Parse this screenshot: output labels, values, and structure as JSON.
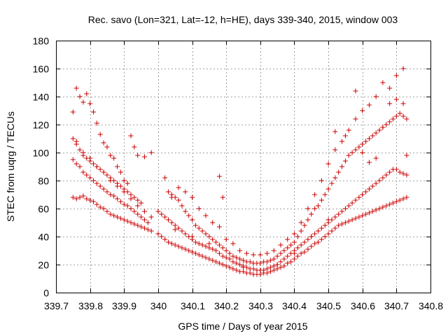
{
  "chart_data": {
    "type": "scatter",
    "title": "Rec. savo (Lon=321, Lat=-12, h=HE), days 339-340, 2015, window 003",
    "xlabel": "GPS time / Days of year 2015",
    "ylabel": "STEC from uqrg / TECUs",
    "xlim": [
      339.7,
      340.8
    ],
    "ylim": [
      0,
      180
    ],
    "xticks": [
      "339.7",
      "339.8",
      "339.9",
      "340",
      "340.1",
      "340.2",
      "340.3",
      "340.4",
      "340.5",
      "340.6",
      "340.7",
      "340.8"
    ],
    "yticks": [
      "0",
      "20",
      "40",
      "60",
      "80",
      "100",
      "120",
      "140",
      "160",
      "180"
    ],
    "grid": true,
    "marker": "plus",
    "color": "#cc0000",
    "series": [
      {
        "x": [
          339.75,
          339.76,
          339.77,
          339.78,
          339.79,
          339.8,
          339.81,
          339.82,
          339.83,
          339.84,
          339.85,
          339.86,
          339.87,
          339.88,
          339.89,
          339.9,
          339.91,
          339.92,
          339.93,
          339.94,
          339.95,
          339.96,
          339.97,
          339.98,
          340.0,
          340.01,
          340.02,
          340.03,
          340.04,
          340.05,
          340.06,
          340.07,
          340.08,
          340.09,
          340.1,
          340.11,
          340.12,
          340.13,
          340.14,
          340.15,
          340.16,
          340.17,
          340.18,
          340.19,
          340.2,
          340.21,
          340.22,
          340.23,
          340.24,
          340.25,
          340.26,
          340.27,
          340.28,
          340.29,
          340.3,
          340.31,
          340.32,
          340.33,
          340.34,
          340.35,
          340.36,
          340.37,
          340.38,
          340.39,
          340.4,
          340.41,
          340.42,
          340.43,
          340.44,
          340.45,
          340.46,
          340.47,
          340.48,
          340.49,
          340.5,
          340.51,
          340.52,
          340.53,
          340.54,
          340.55,
          340.56,
          340.57,
          340.58,
          340.59,
          340.6,
          340.61,
          340.62,
          340.63,
          340.64,
          340.65,
          340.66,
          340.67,
          340.68,
          340.69,
          340.7,
          340.71,
          340.72,
          340.73
        ],
        "y": [
          68,
          67,
          68,
          69,
          67,
          66,
          65,
          63,
          61,
          60,
          58,
          56,
          55,
          54,
          53,
          52,
          51,
          50,
          49,
          48,
          47,
          46,
          45,
          44,
          42,
          40,
          38,
          36,
          35,
          34,
          33,
          32,
          31,
          30,
          29,
          28,
          27,
          26,
          25,
          24,
          23,
          22,
          21,
          20,
          19,
          18,
          17,
          16,
          15,
          15,
          14,
          14,
          13,
          13,
          13,
          14,
          14,
          15,
          16,
          17,
          18,
          19,
          21,
          22,
          24,
          26,
          28,
          29,
          31,
          33,
          35,
          36,
          38,
          40,
          42,
          44,
          46,
          48,
          49,
          50,
          51,
          52,
          53,
          54,
          55,
          56,
          57,
          58,
          59,
          60,
          61,
          62,
          63,
          64,
          65,
          66,
          67,
          68
        ]
      },
      {
        "x": [
          339.75,
          339.76,
          339.77,
          339.78,
          339.79,
          339.8,
          339.81,
          339.82,
          339.83,
          339.84,
          339.85,
          339.86,
          339.87,
          339.88,
          339.89,
          339.9,
          339.91,
          339.92,
          339.93,
          339.94,
          339.95,
          339.96,
          339.97,
          340.0,
          340.01,
          340.02,
          340.03,
          340.04,
          340.05,
          340.06,
          340.07,
          340.08,
          340.09,
          340.1,
          340.11,
          340.12,
          340.13,
          340.14,
          340.15,
          340.16,
          340.17,
          340.18,
          340.19,
          340.2,
          340.21,
          340.22,
          340.23,
          340.24,
          340.25,
          340.26,
          340.27,
          340.28,
          340.29,
          340.3,
          340.31,
          340.32,
          340.33,
          340.34,
          340.35,
          340.36,
          340.37,
          340.38,
          340.39,
          340.4,
          340.41,
          340.42,
          340.43,
          340.44,
          340.45,
          340.46,
          340.47,
          340.48,
          340.49,
          340.5,
          340.51,
          340.52,
          340.53,
          340.54,
          340.55,
          340.56,
          340.57,
          340.58,
          340.59,
          340.6,
          340.61,
          340.62,
          340.63,
          340.64,
          340.65,
          340.66,
          340.67,
          340.68,
          340.69,
          340.7,
          340.71,
          340.72,
          340.73
        ],
        "y": [
          95,
          92,
          90,
          86,
          84,
          82,
          80,
          78,
          76,
          74,
          72,
          70,
          69,
          67,
          65,
          63,
          62,
          60,
          58,
          56,
          54,
          52,
          50,
          58,
          56,
          54,
          52,
          50,
          48,
          46,
          44,
          42,
          40,
          38,
          36,
          35,
          34,
          33,
          32,
          31,
          30,
          28,
          26,
          25,
          24,
          22,
          21,
          20,
          19,
          18,
          17,
          17,
          16,
          16,
          16,
          17,
          18,
          19,
          20,
          22,
          24,
          26,
          28,
          30,
          32,
          34,
          36,
          38,
          40,
          42,
          44,
          46,
          48,
          50,
          52,
          54,
          56,
          58,
          60,
          62,
          64,
          66,
          68,
          70,
          72,
          74,
          76,
          78,
          80,
          82,
          84,
          86,
          88,
          88,
          86,
          85,
          84
        ]
      },
      {
        "x": [
          339.75,
          339.76,
          339.77,
          339.78,
          339.79,
          339.8,
          339.81,
          339.82,
          339.83,
          339.84,
          339.85,
          339.86,
          339.87,
          339.88,
          339.89,
          339.9,
          339.91,
          339.92,
          339.93,
          339.94,
          339.95,
          340.03,
          340.04,
          340.05,
          340.06,
          340.07,
          340.08,
          340.09,
          340.1,
          340.11,
          340.12,
          340.13,
          340.14,
          340.15,
          340.16,
          340.17,
          340.18,
          340.19,
          340.2,
          340.21,
          340.22,
          340.23,
          340.24,
          340.25,
          340.26,
          340.27,
          340.28,
          340.29,
          340.3,
          340.31,
          340.32,
          340.33,
          340.34,
          340.35,
          340.36,
          340.37,
          340.38,
          340.39,
          340.4,
          340.41,
          340.42,
          340.43,
          340.44,
          340.45,
          340.46,
          340.47,
          340.48,
          340.49,
          340.5,
          340.51,
          340.52,
          340.53,
          340.54,
          340.55,
          340.56,
          340.57,
          340.58,
          340.59,
          340.6,
          340.61,
          340.62,
          340.63,
          340.64,
          340.65,
          340.66,
          340.67,
          340.68,
          340.69,
          340.7,
          340.71,
          340.72,
          340.73
        ],
        "y": [
          110,
          106,
          102,
          98,
          96,
          94,
          92,
          90,
          88,
          86,
          84,
          82,
          80,
          78,
          76,
          74,
          72,
          70,
          68,
          66,
          64,
          72,
          70,
          68,
          66,
          62,
          58,
          55,
          52,
          48,
          46,
          44,
          42,
          40,
          38,
          36,
          34,
          32,
          30,
          28,
          26,
          25,
          24,
          23,
          22,
          22,
          21,
          21,
          21,
          22,
          22,
          23,
          24,
          26,
          28,
          30,
          32,
          34,
          36,
          40,
          44,
          48,
          52,
          56,
          60,
          62,
          66,
          70,
          74,
          78,
          82,
          86,
          90,
          94,
          98,
          100,
          102,
          104,
          106,
          108,
          110,
          112,
          114,
          116,
          118,
          120,
          122,
          124,
          126,
          128,
          126,
          124
        ]
      },
      {
        "x": [
          339.75,
          339.76,
          339.77,
          339.78,
          339.79,
          339.8,
          339.81,
          339.82,
          339.83,
          339.84,
          339.85,
          339.86,
          339.87,
          339.88,
          339.89,
          339.9,
          339.91,
          339.92,
          339.93,
          339.94,
          339.96,
          339.98,
          340.02,
          340.04,
          340.06,
          340.08,
          340.1,
          340.12,
          340.14,
          340.16,
          340.18,
          340.2,
          340.22,
          340.24,
          340.26,
          340.28,
          340.3,
          340.32,
          340.34,
          340.36,
          340.38,
          340.4,
          340.42,
          340.44,
          340.46,
          340.48,
          340.5,
          340.52,
          340.54,
          340.56,
          340.58,
          340.6,
          340.62,
          340.64,
          340.66,
          340.68,
          340.7,
          340.72
        ],
        "y": [
          129,
          146,
          140,
          136,
          142,
          135,
          129,
          121,
          113,
          107,
          104,
          98,
          96,
          90,
          86,
          80,
          78,
          112,
          104,
          98,
          97,
          100,
          82,
          68,
          75,
          72,
          68,
          60,
          55,
          50,
          47,
          38,
          35,
          30,
          28,
          27,
          27,
          28,
          30,
          34,
          38,
          42,
          50,
          60,
          70,
          80,
          92,
          102,
          108,
          116,
          124,
          130,
          134,
          140,
          150,
          146,
          155,
          160
        ]
      },
      {
        "x": [
          339.76,
          339.78,
          339.8,
          339.82,
          339.84,
          339.86,
          339.88,
          339.9,
          339.92,
          339.94,
          339.96,
          339.98,
          340.05,
          340.1,
          340.15,
          340.18,
          340.19,
          340.25,
          340.3,
          340.35,
          340.4,
          340.45,
          340.5,
          340.52,
          340.55,
          340.58,
          340.6,
          340.62,
          340.64,
          340.66,
          340.68,
          340.7,
          340.72,
          340.73
        ],
        "y": [
          108,
          100,
          96,
          90,
          86,
          80,
          76,
          72,
          67,
          62,
          58,
          54,
          45,
          40,
          35,
          83,
          68,
          18,
          16,
          20,
          28,
          40,
          52,
          115,
          112,
          144,
          100,
          93,
          96,
          118,
          135,
          138,
          135,
          98
        ]
      }
    ]
  }
}
